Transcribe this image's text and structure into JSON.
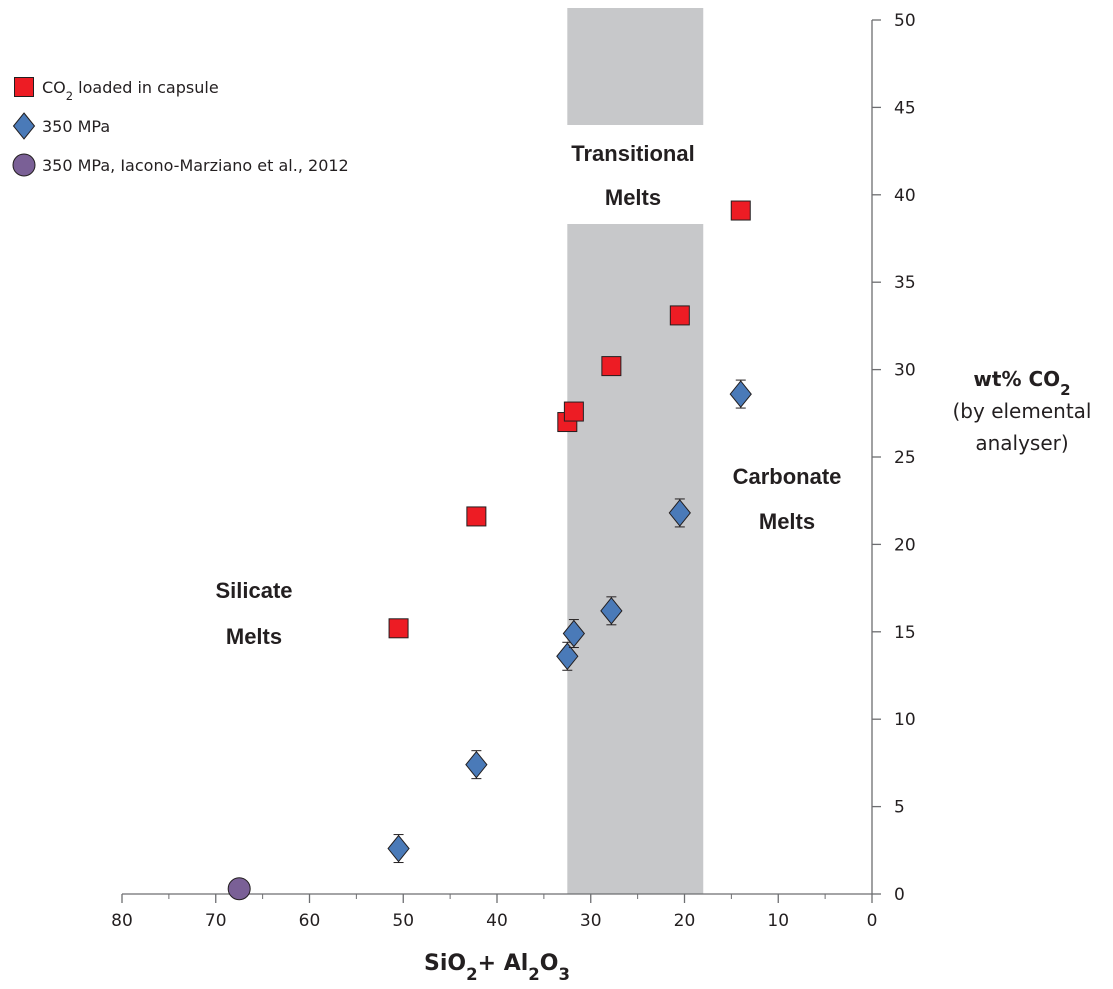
{
  "chart_data": {
    "type": "scatter",
    "title": "",
    "x_axis": {
      "label_parts": [
        [
          "SiO",
          false
        ],
        [
          "2",
          true
        ],
        [
          "+ Al",
          false
        ],
        [
          "2",
          true
        ],
        [
          "O",
          false
        ],
        [
          "3",
          true
        ]
      ],
      "range": [
        80,
        0
      ],
      "reversed": true,
      "ticks": [
        "80",
        "70",
        "60",
        "50",
        "40",
        "30",
        "20",
        "10",
        "0"
      ]
    },
    "y_axis": {
      "label_line1_parts": [
        [
          "wt% CO",
          false
        ],
        [
          "2",
          true
        ]
      ],
      "label_line2": "(by elemental",
      "label_line3": "analyser)",
      "range": [
        0,
        50
      ],
      "position": "right",
      "ticks": [
        "0",
        "5",
        "10",
        "15",
        "20",
        "25",
        "30",
        "35",
        "40",
        "45",
        "50"
      ]
    },
    "shaded_band": {
      "x_range": [
        32.5,
        18
      ],
      "color": "#c7c8ca"
    },
    "region_labels": [
      {
        "line1": "Silicate",
        "line2": "Melts"
      },
      {
        "line1": "Transitional",
        "line2": "Melts"
      },
      {
        "line1": "Carbonate",
        "line2": "Melts"
      }
    ],
    "legend": {
      "placement": "top-left"
    },
    "series": [
      {
        "name_parts": [
          [
            "CO",
            false
          ],
          [
            "2",
            true
          ],
          [
            " loaded in capsule",
            false
          ]
        ],
        "marker": "square",
        "color": "#ed1c24",
        "points": [
          {
            "x": 50.5,
            "y": 15.2
          },
          {
            "x": 42.2,
            "y": 21.6
          },
          {
            "x": 32.5,
            "y": 27.0
          },
          {
            "x": 31.8,
            "y": 27.6
          },
          {
            "x": 27.8,
            "y": 30.2
          },
          {
            "x": 20.5,
            "y": 33.1
          },
          {
            "x": 14.0,
            "y": 39.1
          }
        ]
      },
      {
        "name_parts": [
          [
            "350 MPa",
            false
          ]
        ],
        "marker": "diamond",
        "color": "#4a7ab8",
        "error_bar": 0.8,
        "points": [
          {
            "x": 50.5,
            "y": 2.6
          },
          {
            "x": 42.2,
            "y": 7.4
          },
          {
            "x": 32.5,
            "y": 13.6
          },
          {
            "x": 31.8,
            "y": 14.9
          },
          {
            "x": 27.8,
            "y": 16.2
          },
          {
            "x": 20.5,
            "y": 21.8
          },
          {
            "x": 14.0,
            "y": 28.6
          }
        ]
      },
      {
        "name_parts": [
          [
            "350 MPa, Iacono-Marziano et al., 2012",
            false
          ]
        ],
        "marker": "circle",
        "color": "#7a6096",
        "points": [
          {
            "x": 67.5,
            "y": 0.3
          }
        ]
      }
    ]
  }
}
